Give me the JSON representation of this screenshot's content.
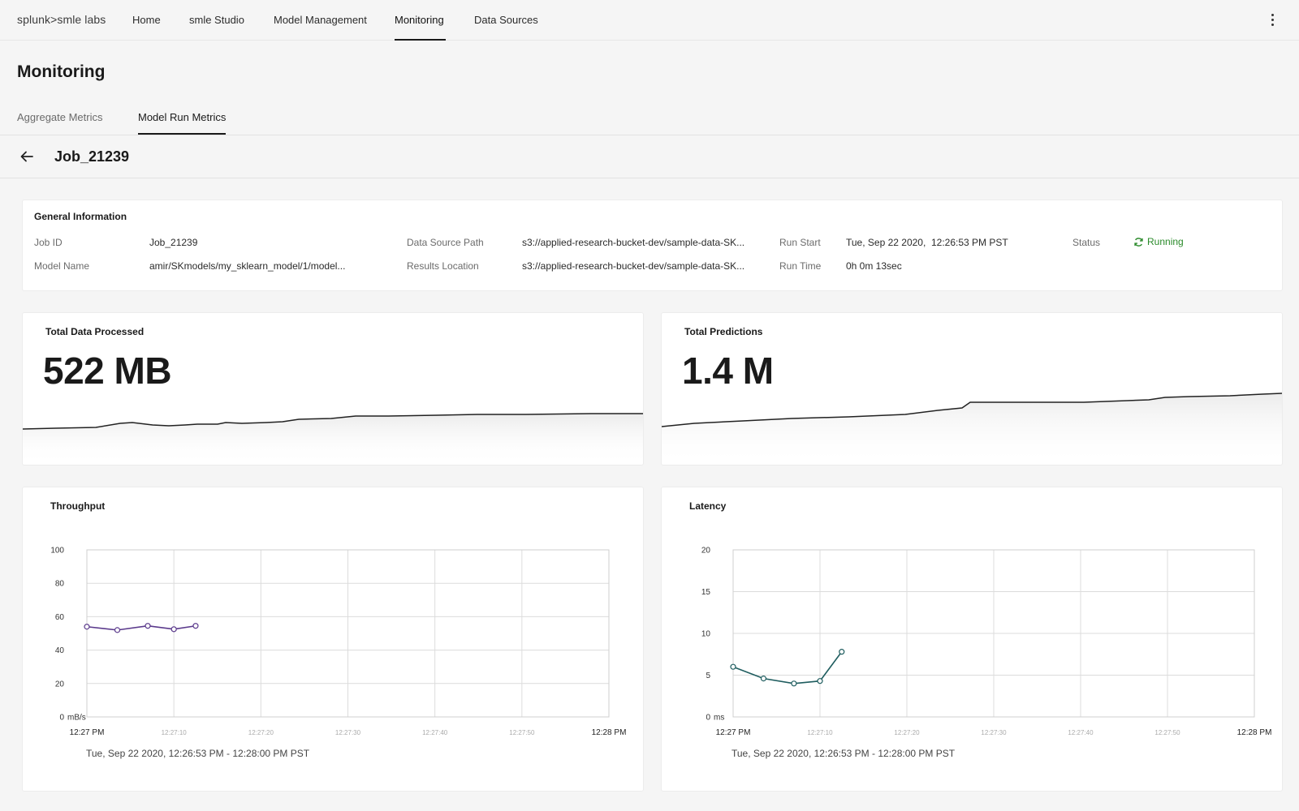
{
  "nav": {
    "logo": "splunk>smle labs",
    "items": [
      "Home",
      "smle Studio",
      "Model Management",
      "Monitoring",
      "Data Sources"
    ],
    "active": "Monitoring"
  },
  "page": {
    "title": "Monitoring",
    "tabs": [
      "Aggregate Metrics",
      "Model Run Metrics"
    ],
    "active_tab": "Model Run Metrics",
    "job_title": "Job_21239"
  },
  "general_info": {
    "title": "General Information",
    "job_id_label": "Job ID",
    "job_id": "Job_21239",
    "model_name_label": "Model Name",
    "model_name": "amir/SKmodels/my_sklearn_model/1/model...",
    "data_source_path_label": "Data Source Path",
    "data_source_path": "s3://applied-research-bucket-dev/sample-data-SK...",
    "results_location_label": "Results Location",
    "results_location": "s3://applied-research-bucket-dev/sample-data-SK...",
    "run_start_label": "Run Start",
    "run_start": "Tue, Sep 22 2020,  12:26:53 PM PST",
    "run_time_label": "Run Time",
    "run_time": "0h 0m 13sec",
    "status_label": "Status",
    "status": "Running",
    "status_color": "#2a8a2a"
  },
  "totals": {
    "data_processed_title": "Total Data Processed",
    "data_processed_value": "522 MB",
    "predictions_title": "Total Predictions",
    "predictions_value": "1.4 M"
  },
  "chart_data": [
    {
      "type": "line",
      "title": "Throughput",
      "ylabel": "mB/s",
      "ylim": [
        0,
        100
      ],
      "yticks": [
        "0",
        "20",
        "40",
        "60",
        "80",
        "100"
      ],
      "y_unit_label": "mB/s",
      "xticks": [
        "12:27 PM",
        "12:27:10",
        "12:27:20",
        "12:27:30",
        "12:27:40",
        "12:27:50",
        "12:28 PM"
      ],
      "series": [
        {
          "x": [
            "12:27:00",
            "12:27:03.5",
            "12:27:07",
            "12:27:10",
            "12:27:12.5"
          ],
          "values": [
            54,
            52,
            54.5,
            52.5,
            54.5
          ],
          "color": "#5b3a8c"
        }
      ],
      "range": "Tue, Sep 22 2020, 12:26:53 PM - 12:28:00 PM PST",
      "grid": true
    },
    {
      "type": "line",
      "title": "Latency",
      "ylabel": "ms",
      "ylim": [
        0,
        20
      ],
      "yticks": [
        "0",
        "5",
        "10",
        "15",
        "20"
      ],
      "y_unit_label": "ms",
      "xticks": [
        "12:27 PM",
        "12:27:10",
        "12:27:20",
        "12:27:30",
        "12:27:40",
        "12:27:50",
        "12:28 PM"
      ],
      "series": [
        {
          "x": [
            "12:27:00",
            "12:27:03.5",
            "12:27:07",
            "12:27:10",
            "12:27:12.5"
          ],
          "values": [
            6,
            4.6,
            4,
            4.3,
            7.8
          ],
          "color": "#1f5d5f"
        }
      ],
      "range": "Tue, Sep 22 2020, 12:26:53 PM - 12:28:00 PM PST",
      "grid": true
    }
  ]
}
